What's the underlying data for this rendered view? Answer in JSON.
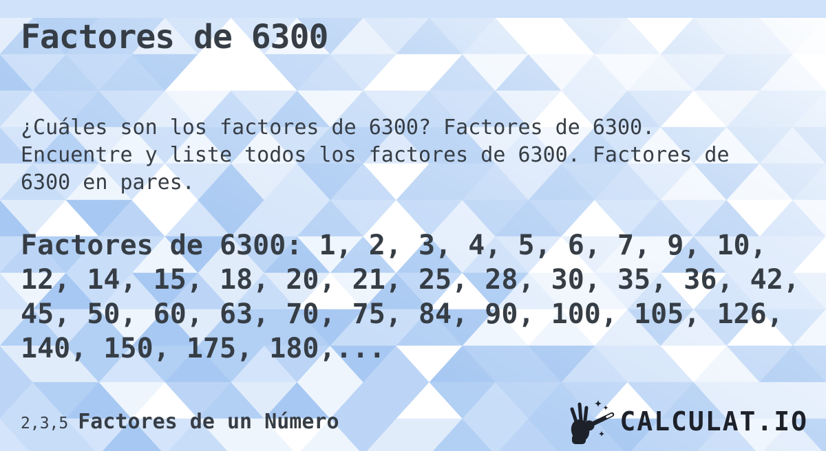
{
  "page": {
    "title": "Factores de 6300",
    "description": "¿Cuáles son los factores de 6300? Factores de 6300. Encuentre y liste todos los factores de 6300. Factores de 6300 en pares.",
    "factors_text": "Factores de 6300: 1, 2, 3, 4, 5, 6, 7, 9, 10, 12, 14, 15, 18, 20, 21, 25, 28, 30, 35, 36, 42, 45, 50, 60, 63, 70, 75, 84, 90, 100, 105, 126, 140, 150, 175, 180,..."
  },
  "footer": {
    "category_prefix": "2,3,5",
    "category_label": "Factores de un Número",
    "brand_text": "CALCULAT.IO"
  },
  "colors": {
    "text": "#363d45",
    "logo_dark": "#1d212a",
    "pattern_palette": [
      "#a7c8f2",
      "#b2cff4",
      "#bcd5f6",
      "#c8ddf8",
      "#d4e4fa",
      "#e1ecfb",
      "#eef5fd",
      "#ffffff"
    ]
  }
}
